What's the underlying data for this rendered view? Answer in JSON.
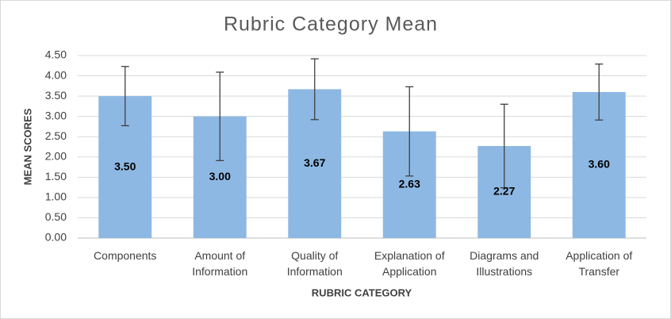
{
  "chart_data": {
    "type": "bar",
    "title": "Rubric Category Mean",
    "x_label": "RUBRIC CATEGORY",
    "y_label": "MEAN SCORES",
    "categories": [
      "Components",
      "Amount of Information",
      "Quality of Information",
      "Explanation of Application",
      "Diagrams and Illustrations",
      "Application of Transfer"
    ],
    "values": [
      3.5,
      3.0,
      3.67,
      2.63,
      2.27,
      3.6
    ],
    "value_labels": [
      "3.50",
      "3.00",
      "3.67",
      "2.63",
      "2.27",
      "3.60"
    ],
    "errors": [
      0.73,
      1.09,
      0.75,
      1.1,
      1.03,
      0.69
    ],
    "color": "#8db8e3",
    "ylim": [
      0,
      4.5
    ],
    "yticks": [
      {
        "value": 0,
        "label": "0.00"
      },
      {
        "value": 0.5,
        "label": "0.50"
      },
      {
        "value": 1,
        "label": "1.00"
      },
      {
        "value": 1.5,
        "label": "1.50"
      },
      {
        "value": 2,
        "label": "2.00"
      },
      {
        "value": 2.5,
        "label": "2.50"
      },
      {
        "value": 3,
        "label": "3.00"
      },
      {
        "value": 3.5,
        "label": "3.50"
      },
      {
        "value": 4,
        "label": "4.00"
      },
      {
        "value": 4.5,
        "label": "4.50"
      }
    ],
    "grid": true
  }
}
